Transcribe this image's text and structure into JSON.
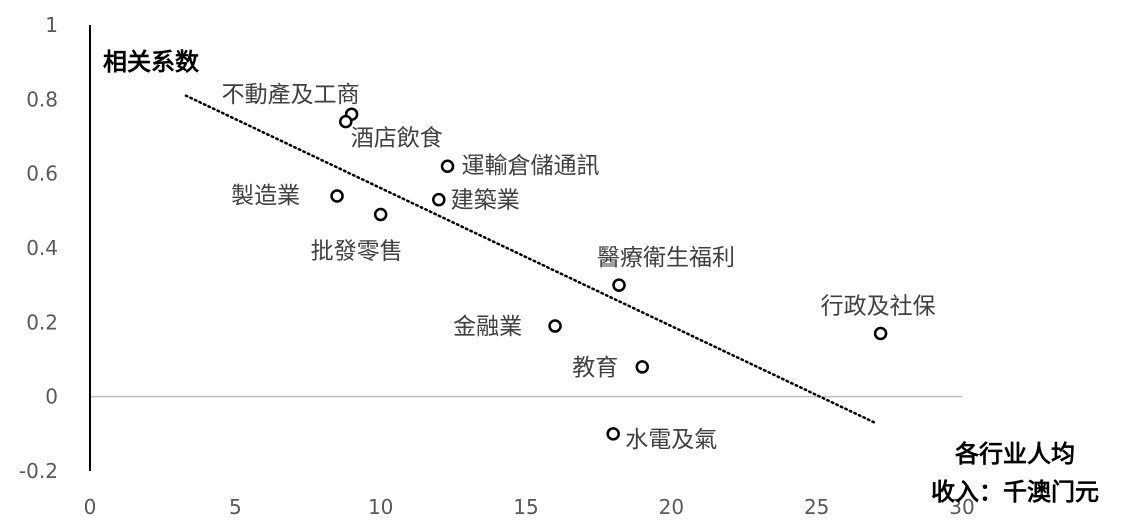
{
  "chart_data": {
    "type": "scatter",
    "title": "",
    "ylabel": "相关系数",
    "xlabel_lines": [
      "各行业人均",
      "收入：千澳门元"
    ],
    "xlim": [
      0,
      30
    ],
    "ylim": [
      -0.2,
      1
    ],
    "xticks": [
      "0",
      "5",
      "10",
      "15",
      "20",
      "25",
      "30"
    ],
    "yticks": [
      "-0.2",
      "0",
      "0.2",
      "0.4",
      "0.6",
      "0.8",
      "1"
    ],
    "grid": false,
    "points": [
      {
        "label": "不動產及工商",
        "x": 9.0,
        "y": 0.76
      },
      {
        "label": "酒店飲食",
        "x": 8.8,
        "y": 0.74
      },
      {
        "label": "運輸倉儲通訊",
        "x": 12.3,
        "y": 0.62
      },
      {
        "label": "製造業",
        "x": 8.5,
        "y": 0.54
      },
      {
        "label": "建築業",
        "x": 12.0,
        "y": 0.53
      },
      {
        "label": "批發零售",
        "x": 10.0,
        "y": 0.49
      },
      {
        "label": "醫療衛生福利",
        "x": 18.2,
        "y": 0.3
      },
      {
        "label": "行政及社保",
        "x": 27.2,
        "y": 0.17
      },
      {
        "label": "金融業",
        "x": 16.0,
        "y": 0.19
      },
      {
        "label": "教育",
        "x": 19.0,
        "y": 0.08
      },
      {
        "label": "水電及氣",
        "x": 18.0,
        "y": -0.1
      }
    ],
    "trendline": {
      "style": "dotted",
      "x": [
        3.3,
        27.0
      ],
      "y": [
        0.81,
        -0.07
      ]
    },
    "colors": {
      "marker": "#000000",
      "trendline": "#000000",
      "zero_line": "#bfbfbf",
      "y_axis": "#000000"
    }
  }
}
